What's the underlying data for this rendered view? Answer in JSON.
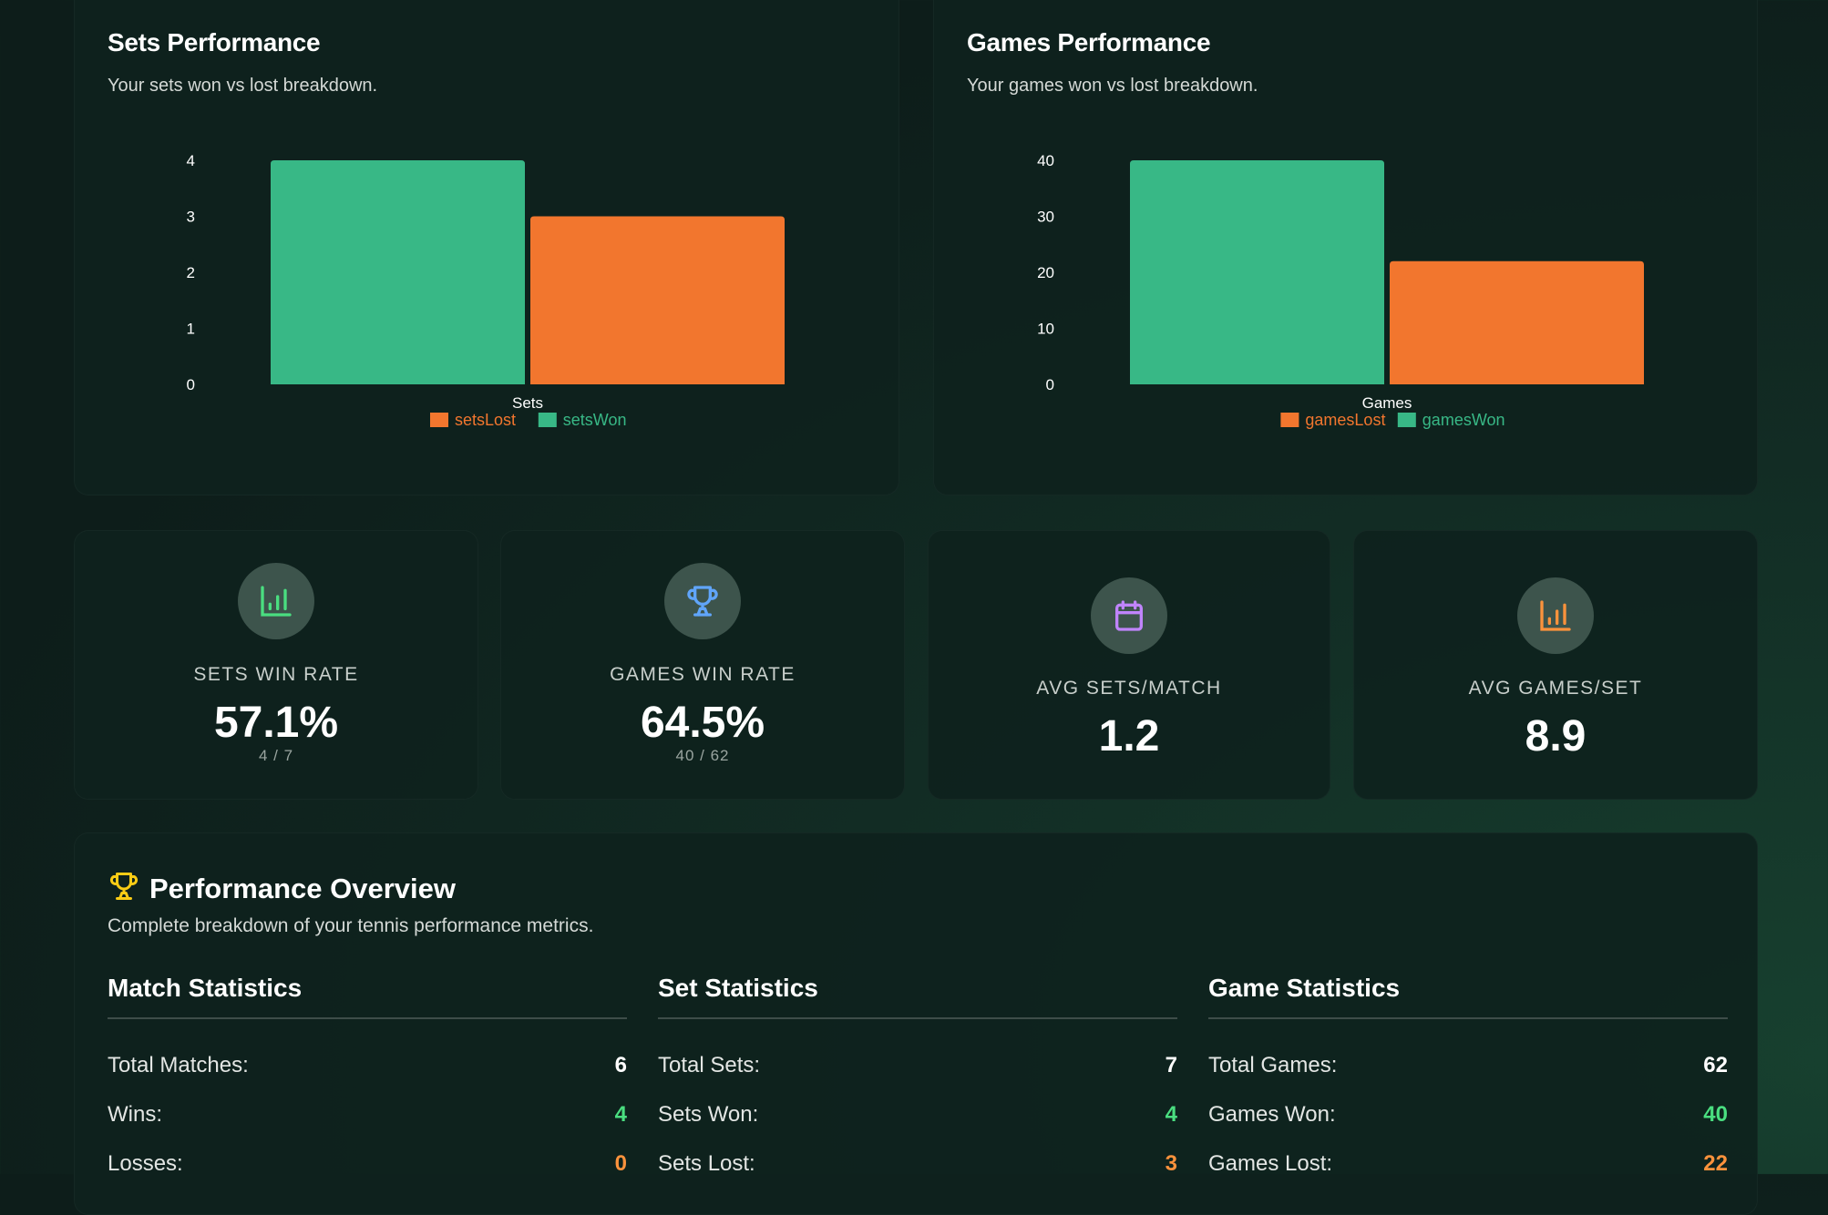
{
  "sets_card": {
    "title": "Sets Performance",
    "subtitle": "Your sets won vs lost breakdown."
  },
  "games_card": {
    "title": "Games Performance",
    "subtitle": "Your games won vs lost breakdown."
  },
  "chart_data": [
    {
      "type": "bar",
      "categories": [
        "Sets"
      ],
      "ylim": [
        0,
        4
      ],
      "yticks": [
        "0",
        "1",
        "2",
        "3",
        "4"
      ],
      "grid": false,
      "legend": "bottom",
      "series": [
        {
          "name": "setsWon",
          "values": [
            4
          ],
          "color": "#38b886"
        },
        {
          "name": "setsLost",
          "values": [
            3
          ],
          "color": "#f2762e"
        }
      ],
      "legend_order": [
        "setsLost",
        "setsWon"
      ]
    },
    {
      "type": "bar",
      "categories": [
        "Games"
      ],
      "ylim": [
        0,
        40
      ],
      "yticks": [
        "0",
        "10",
        "20",
        "30",
        "40"
      ],
      "grid": false,
      "legend": "bottom",
      "series": [
        {
          "name": "gamesWon",
          "values": [
            40
          ],
          "color": "#38b886"
        },
        {
          "name": "gamesLost",
          "values": [
            22
          ],
          "color": "#f2762e"
        }
      ],
      "legend_order": [
        "gamesLost",
        "gamesWon"
      ]
    }
  ],
  "stats": [
    {
      "label": "SETS WIN RATE",
      "value": "57.1%",
      "sub": "4 / 7",
      "icon": "bar-chart-icon",
      "color": "#4ade80"
    },
    {
      "label": "GAMES WIN RATE",
      "value": "64.5%",
      "sub": "40 / 62",
      "icon": "trophy-icon",
      "color": "#60a5fa"
    },
    {
      "label": "AVG SETS/MATCH",
      "value": "1.2",
      "icon": "calendar-icon",
      "color": "#c084fc"
    },
    {
      "label": "AVG GAMES/SET",
      "value": "8.9",
      "icon": "bar-chart-icon",
      "color": "#fb923c"
    }
  ],
  "overview": {
    "title": "Performance Overview",
    "subtitle": "Complete breakdown of your tennis performance metrics.",
    "icon": "trophy-icon",
    "icon_color": "#facc15",
    "columns": [
      {
        "title": "Match Statistics",
        "rows": [
          {
            "label": "Total Matches:",
            "value": "6"
          },
          {
            "label": "Wins:",
            "value": "4"
          },
          {
            "label": "Losses:",
            "value": "0"
          }
        ]
      },
      {
        "title": "Set Statistics",
        "rows": [
          {
            "label": "Total Sets:",
            "value": "7"
          },
          {
            "label": "Sets Won:",
            "value": "4"
          },
          {
            "label": "Sets Lost:",
            "value": "3"
          }
        ]
      },
      {
        "title": "Game Statistics",
        "rows": [
          {
            "label": "Total Games:",
            "value": "62"
          },
          {
            "label": "Games Won:",
            "value": "40"
          },
          {
            "label": "Games Lost:",
            "value": "22"
          }
        ]
      }
    ]
  }
}
